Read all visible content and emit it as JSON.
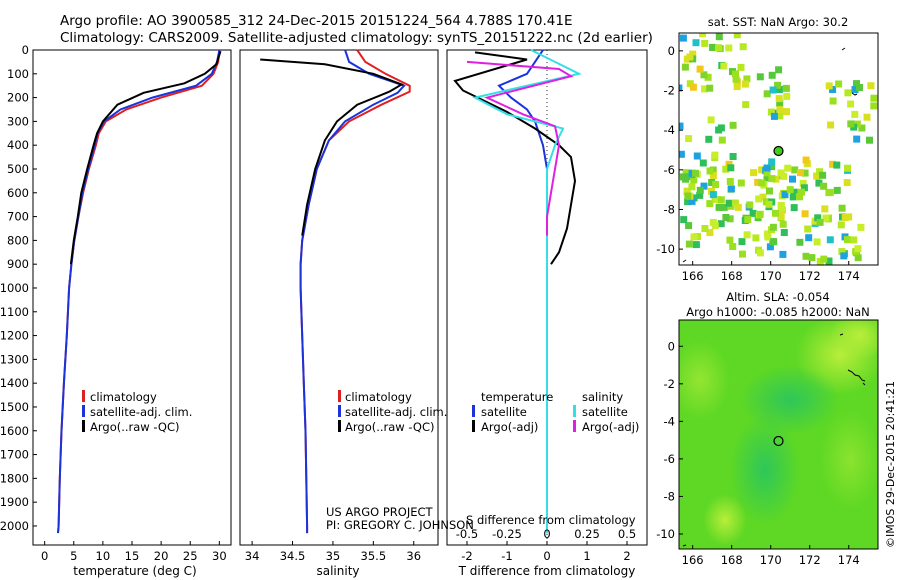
{
  "header": {
    "line1": "Argo profile: AO 3900585_312 24-Dec-2015 20151224_564 4.788S 170.41E",
    "line2": "Climatology: CARS2009. Satellite-adjusted climatology: synTS_20151222.nc (2d earlier)"
  },
  "credits": {
    "line1": "US ARGO PROJECT",
    "line2": "PI: GREGORY C. JOHNSON",
    "stamp": "©IMOS 29-Dec-2015 20:41:21"
  },
  "colors": {
    "climatology": "#e02020",
    "satellite": "#1a33dd",
    "argo": "#000000",
    "sat_sal": "#33e0e8",
    "argo_sal": "#e020e0"
  },
  "chart_data": [
    {
      "type": "line",
      "name": "temperature-profile",
      "xlabel": "temperature (deg C)",
      "ylabel": "",
      "xlim": [
        -2,
        32
      ],
      "ylim": [
        2080,
        0
      ],
      "xticks": [
        0,
        5,
        10,
        15,
        20,
        25,
        30
      ],
      "yticks": [
        0,
        100,
        200,
        300,
        400,
        500,
        600,
        700,
        800,
        900,
        1000,
        1100,
        1200,
        1300,
        1400,
        1500,
        1600,
        1700,
        1800,
        1900,
        2000
      ],
      "legend": [
        "climatology",
        "satellite-adj. clim.",
        "Argo(..raw -QC)"
      ],
      "legend_position": "lower-center",
      "series": [
        {
          "name": "climatology",
          "color": "#e02020",
          "points": [
            [
              30,
              0
            ],
            [
              29.8,
              50
            ],
            [
              29,
              100
            ],
            [
              27,
              150
            ],
            [
              20,
              200
            ],
            [
              14,
              250
            ],
            [
              10.5,
              300
            ],
            [
              9.3,
              350
            ],
            [
              8.8,
              400
            ],
            [
              7.6,
              500
            ],
            [
              6.6,
              600
            ],
            [
              5.8,
              700
            ],
            [
              5.1,
              800
            ],
            [
              4.6,
              900
            ],
            [
              4.2,
              1000
            ],
            [
              3.8,
              1200
            ],
            [
              3.3,
              1400
            ],
            [
              2.9,
              1600
            ],
            [
              2.6,
              1800
            ],
            [
              2.4,
              2000
            ],
            [
              2.3,
              2030
            ]
          ]
        },
        {
          "name": "satellite-adj. clim.",
          "color": "#1a33dd",
          "points": [
            [
              30,
              0
            ],
            [
              29.6,
              50
            ],
            [
              28.7,
              100
            ],
            [
              26,
              150
            ],
            [
              18.5,
              200
            ],
            [
              13,
              250
            ],
            [
              10.2,
              300
            ],
            [
              9.1,
              350
            ],
            [
              8.6,
              400
            ],
            [
              7.5,
              500
            ],
            [
              6.5,
              600
            ],
            [
              5.8,
              700
            ],
            [
              5.1,
              800
            ],
            [
              4.6,
              900
            ],
            [
              4.2,
              1000
            ],
            [
              3.8,
              1200
            ],
            [
              3.3,
              1400
            ],
            [
              2.9,
              1600
            ],
            [
              2.6,
              1800
            ],
            [
              2.4,
              2000
            ],
            [
              2.3,
              2030
            ]
          ]
        },
        {
          "name": "Argo(..raw -QC)",
          "color": "#000000",
          "points": [
            [
              30.2,
              5
            ],
            [
              29.5,
              60
            ],
            [
              27.5,
              100
            ],
            [
              24,
              140
            ],
            [
              17,
              180
            ],
            [
              12.5,
              230
            ],
            [
              10,
              300
            ],
            [
              9,
              350
            ],
            [
              8.4,
              400
            ],
            [
              7.3,
              500
            ],
            [
              6.3,
              600
            ],
            [
              5.7,
              700
            ],
            [
              5.0,
              800
            ],
            [
              4.5,
              900
            ]
          ]
        }
      ]
    },
    {
      "type": "line",
      "name": "salinity-profile",
      "xlabel": "salinity",
      "ylabel": "",
      "xlim": [
        33.85,
        36.3
      ],
      "ylim": [
        2080,
        0
      ],
      "xticks": [
        34,
        34.5,
        35,
        35.5,
        36
      ],
      "legend": [
        "climatology",
        "satellite-adj. clim.",
        "Argo(..raw -QC)"
      ],
      "legend_position": "lower-center",
      "series": [
        {
          "name": "climatology",
          "color": "#e02020",
          "points": [
            [
              35.3,
              0
            ],
            [
              35.4,
              50
            ],
            [
              35.65,
              100
            ],
            [
              35.95,
              150
            ],
            [
              35.95,
              175
            ],
            [
              35.6,
              230
            ],
            [
              35.2,
              300
            ],
            [
              34.95,
              380
            ],
            [
              34.8,
              500
            ],
            [
              34.7,
              650
            ],
            [
              34.62,
              800
            ],
            [
              34.6,
              900
            ],
            [
              34.6,
              1000
            ],
            [
              34.62,
              1200
            ],
            [
              34.64,
              1400
            ],
            [
              34.66,
              1600
            ],
            [
              34.67,
              1800
            ],
            [
              34.68,
              2000
            ],
            [
              34.68,
              2030
            ]
          ]
        },
        {
          "name": "satellite-adj. clim.",
          "color": "#1a33dd",
          "points": [
            [
              35.15,
              0
            ],
            [
              35.2,
              50
            ],
            [
              35.45,
              100
            ],
            [
              35.88,
              150
            ],
            [
              35.8,
              180
            ],
            [
              35.5,
              230
            ],
            [
              35.15,
              300
            ],
            [
              34.95,
              380
            ],
            [
              34.8,
              500
            ],
            [
              34.7,
              650
            ],
            [
              34.62,
              800
            ],
            [
              34.6,
              900
            ],
            [
              34.6,
              1000
            ],
            [
              34.62,
              1200
            ],
            [
              34.64,
              1400
            ],
            [
              34.66,
              1600
            ],
            [
              34.67,
              1800
            ],
            [
              34.68,
              2000
            ],
            [
              34.68,
              2030
            ]
          ]
        },
        {
          "name": "Argo(..raw -QC)",
          "color": "#000000",
          "points": [
            [
              34.1,
              40
            ],
            [
              34.9,
              60
            ],
            [
              35.5,
              100
            ],
            [
              35.85,
              145
            ],
            [
              35.7,
              175
            ],
            [
              35.3,
              230
            ],
            [
              35.05,
              300
            ],
            [
              34.9,
              380
            ],
            [
              34.78,
              500
            ],
            [
              34.68,
              650
            ],
            [
              34.62,
              780
            ]
          ]
        }
      ]
    },
    {
      "type": "line",
      "name": "difference-profile",
      "xlabel": "T difference from climatology",
      "title": "S difference from climatology",
      "xlim": [
        -2.5,
        2.5
      ],
      "ylim": [
        2080,
        0
      ],
      "xticks_t": [
        -2,
        -1,
        0,
        1,
        2
      ],
      "xticks_s": [
        "-0.5",
        "-0.25",
        "0",
        "0.25",
        "0.5"
      ],
      "legend_temperature": {
        "title": "temperature",
        "items": [
          "satellite",
          "Argo(-adj)"
        ]
      },
      "legend_salinity": {
        "title": "salinity",
        "items": [
          "satellite",
          "Argo(-adj)"
        ]
      },
      "series": [
        {
          "name": "satellite",
          "group": "temperature",
          "color": "#1a33dd",
          "points": [
            [
              -0.1,
              0
            ],
            [
              -0.3,
              50
            ],
            [
              -0.5,
              100
            ],
            [
              -1.2,
              150
            ],
            [
              -0.9,
              200
            ],
            [
              -0.5,
              250
            ],
            [
              -0.3,
              300
            ],
            [
              -0.1,
              400
            ],
            [
              0,
              500
            ],
            [
              0,
              700
            ],
            [
              0,
              1000
            ],
            [
              0,
              1500
            ],
            [
              0,
              2030
            ]
          ]
        },
        {
          "name": "Argo(-adj)",
          "group": "temperature",
          "color": "#000000",
          "points": [
            [
              -1.8,
              10
            ],
            [
              -0.5,
              40
            ],
            [
              -2.3,
              130
            ],
            [
              -2.1,
              170
            ],
            [
              -1.0,
              260
            ],
            [
              -0.3,
              330
            ],
            [
              0.3,
              400
            ],
            [
              0.6,
              450
            ],
            [
              0.7,
              550
            ],
            [
              0.6,
              650
            ],
            [
              0.5,
              750
            ],
            [
              0.3,
              850
            ],
            [
              0.1,
              900
            ]
          ]
        },
        {
          "name": "satellite",
          "group": "salinity",
          "color": "#33e0e8",
          "points": [
            [
              -0.4,
              0
            ],
            [
              0.2,
              50
            ],
            [
              0.8,
              100
            ],
            [
              -1.8,
              200
            ],
            [
              -1.0,
              270
            ],
            [
              0.4,
              330
            ],
            [
              0.2,
              400
            ],
            [
              0,
              500
            ],
            [
              0,
              700
            ],
            [
              0,
              1000
            ],
            [
              0,
              1500
            ],
            [
              0,
              2030
            ]
          ]
        },
        {
          "name": "Argo(-adj)",
          "group": "salinity",
          "color": "#e020e0",
          "points": [
            [
              -2.0,
              50
            ],
            [
              0.3,
              80
            ],
            [
              0.6,
              110
            ],
            [
              -1.5,
              200
            ],
            [
              -0.6,
              270
            ],
            [
              0.2,
              320
            ],
            [
              0.3,
              400
            ],
            [
              0.2,
              500
            ],
            [
              0.1,
              600
            ],
            [
              0,
              700
            ],
            [
              0,
              780
            ]
          ]
        }
      ]
    },
    {
      "type": "heatmap",
      "name": "sst-map",
      "title": "sat. SST: NaN Argo: 30.2",
      "xlim": [
        165.3,
        175.5
      ],
      "ylim": [
        -10.8,
        0.9
      ],
      "xticks": [
        166,
        168,
        170,
        172,
        174
      ],
      "yticks": [
        0,
        -2,
        -4,
        -6,
        -8,
        -10
      ],
      "marker": [
        170.41,
        -4.788
      ]
    },
    {
      "type": "heatmap",
      "name": "sla-map",
      "title": "Altim. SLA: -0.054",
      "subtitle": "Argo h1000: -0.085 h2000: NaN",
      "xlim": [
        165.3,
        175.5
      ],
      "ylim": [
        -10.8,
        1.4
      ],
      "xticks": [
        166,
        168,
        170,
        172,
        174
      ],
      "yticks": [
        0,
        -2,
        -4,
        -6,
        -8,
        -10
      ],
      "marker": [
        170.41,
        -4.788
      ]
    }
  ]
}
